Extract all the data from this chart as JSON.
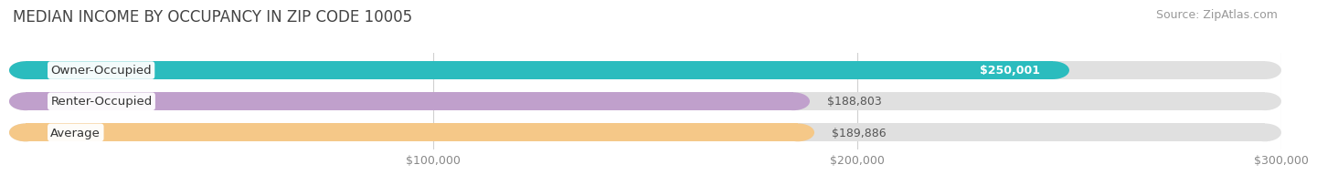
{
  "title": "MEDIAN INCOME BY OCCUPANCY IN ZIP CODE 10005",
  "source": "Source: ZipAtlas.com",
  "categories": [
    "Owner-Occupied",
    "Renter-Occupied",
    "Average"
  ],
  "values": [
    250001,
    188803,
    189886
  ],
  "bar_colors": [
    "#2bbcbe",
    "#c0a0cc",
    "#f5c888"
  ],
  "bar_bg_color": "#e0e0e0",
  "label_values": [
    "$250,001",
    "$188,803",
    "$189,886"
  ],
  "xlim": [
    0,
    300000
  ],
  "xticks": [
    100000,
    200000,
    300000
  ],
  "xticklabels": [
    "$100,000",
    "$200,000",
    "$300,000"
  ],
  "title_fontsize": 12,
  "source_fontsize": 9,
  "label_fontsize": 9.5,
  "value_fontsize": 9,
  "tick_fontsize": 9,
  "bar_height": 0.58,
  "background_color": "#ffffff",
  "cat_label_color": "#333333",
  "value_label_color_inside": "#ffffff",
  "value_label_color_outside": "#555555"
}
